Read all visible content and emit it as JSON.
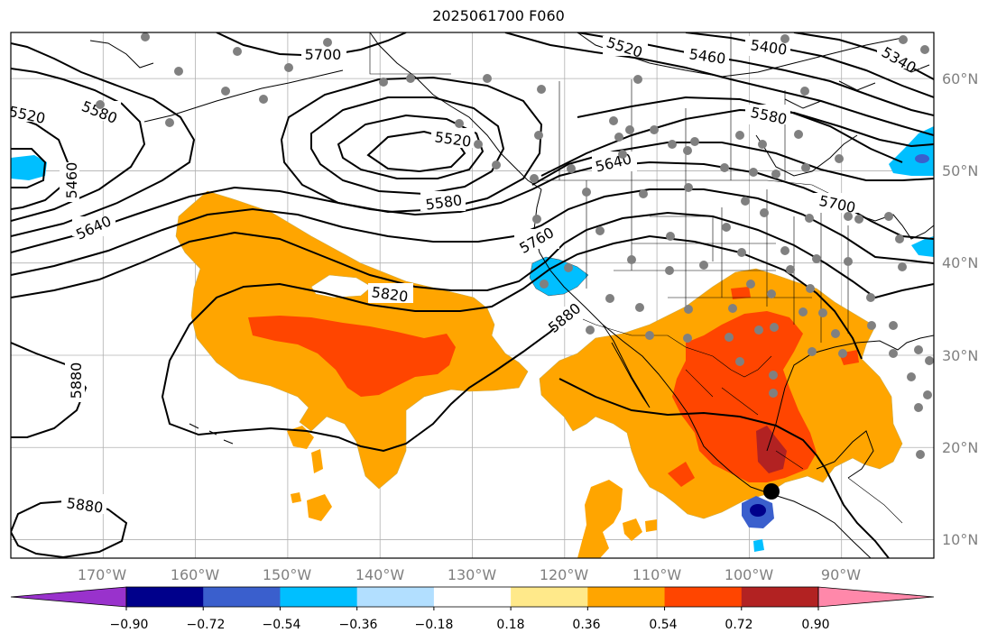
{
  "title": "2025061700 F060",
  "map": {
    "projection": "lat-lon",
    "lon_range": [
      -180,
      -80
    ],
    "lat_range": [
      8,
      65
    ],
    "grid": true,
    "background_color": "#ffffff",
    "coastline_color": "#000000",
    "station_dot_color": "#808080"
  },
  "axes": {
    "lon_ticks": [
      "170°W",
      "160°W",
      "150°W",
      "140°W",
      "130°W",
      "120°W",
      "110°W",
      "100°W",
      "90°W"
    ],
    "lon_values": [
      -170,
      -160,
      -150,
      -140,
      -130,
      -120,
      -110,
      -100,
      -90
    ],
    "lat_ticks": [
      "10°N",
      "20°N",
      "30°N",
      "40°N",
      "50°N",
      "60°N"
    ],
    "lat_values": [
      10,
      20,
      30,
      40,
      50,
      60
    ],
    "tick_label_color": "#808080"
  },
  "contours": {
    "field": "500 hPa height",
    "interval": 60,
    "labels": [
      "5520",
      "5580",
      "5460",
      "5640",
      "5700",
      "5520",
      "5580",
      "5520",
      "5460",
      "5400",
      "5340",
      "5580",
      "5640",
      "5700",
      "5760",
      "5820",
      "5880",
      "5880",
      "5880"
    ]
  },
  "colorbar": {
    "ticks": [
      "−0.90",
      "−0.72",
      "−0.54",
      "−0.36",
      "−0.18",
      "0.18",
      "0.36",
      "0.54",
      "0.72",
      "0.90"
    ],
    "colors": [
      "#9932cc",
      "#00008b",
      "#3a5fcd",
      "#00bfff",
      "#b2dfff",
      "#ffffff",
      "#ffe98a",
      "#ffa500",
      "#ff4500",
      "#b22222",
      "#ff88aa"
    ]
  }
}
